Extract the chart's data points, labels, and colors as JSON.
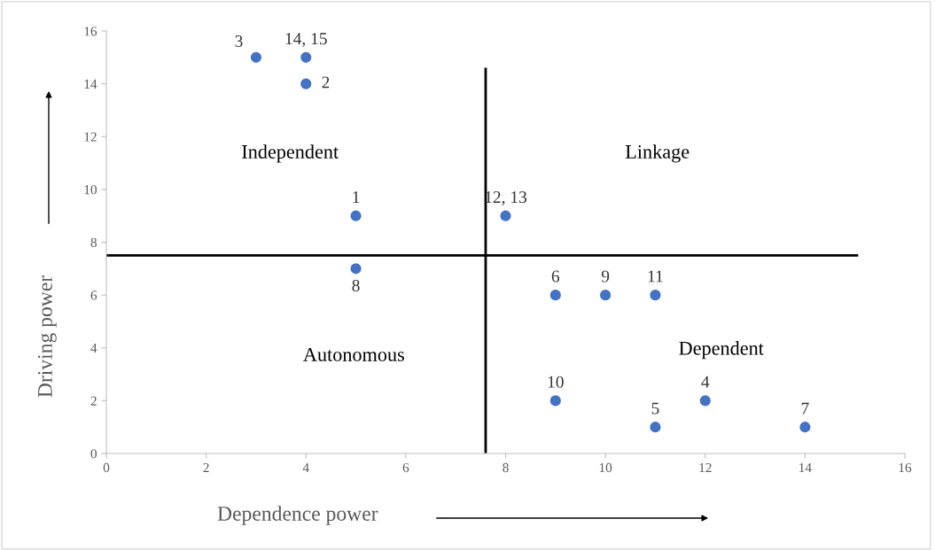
{
  "chart_data": {
    "type": "scatter",
    "xlabel": "Dependence power",
    "ylabel": "Driving power",
    "x": [
      3,
      4,
      4,
      5,
      8,
      5,
      9,
      10,
      11,
      9,
      11,
      12,
      14
    ],
    "values": [
      15,
      15,
      14,
      9,
      9,
      7,
      6,
      6,
      6,
      2,
      1,
      2,
      1
    ],
    "color": "#4472c4",
    "marker": "circle",
    "grid": false,
    "xlim": [
      0,
      16
    ],
    "xticks": [
      0,
      2,
      4,
      6,
      8,
      10,
      12,
      14,
      16
    ],
    "ylim": [
      0,
      16
    ],
    "yticks": [
      0,
      2,
      4,
      6,
      8,
      10,
      12,
      14,
      16
    ],
    "ref_lines": [
      {
        "axis": "x",
        "value": 7.6,
        "color": "#000000"
      },
      {
        "axis": "y",
        "value": 7.5,
        "color": "#000000"
      }
    ],
    "annotations": [
      "Independent",
      "Linkage",
      "Autonomous",
      "Dependent",
      {
        "text": "3",
        "x": 3,
        "y": 15
      },
      {
        "text": "14, 15",
        "x": 4,
        "y": 15
      },
      {
        "text": "2",
        "x": 4,
        "y": 14
      },
      {
        "text": "1",
        "x": 5,
        "y": 9
      },
      {
        "text": "12, 13",
        "x": 8,
        "y": 9
      },
      {
        "text": "8",
        "x": 5,
        "y": 7
      },
      {
        "text": "6",
        "x": 9,
        "y": 6
      },
      {
        "text": "9",
        "x": 10,
        "y": 6
      },
      {
        "text": "11",
        "x": 11,
        "y": 6
      },
      {
        "text": "10",
        "x": 9,
        "y": 2
      },
      {
        "text": "5",
        "x": 11,
        "y": 1
      },
      {
        "text": "4",
        "x": 12,
        "y": 2
      },
      {
        "text": "7",
        "x": 14,
        "y": 1
      }
    ]
  }
}
